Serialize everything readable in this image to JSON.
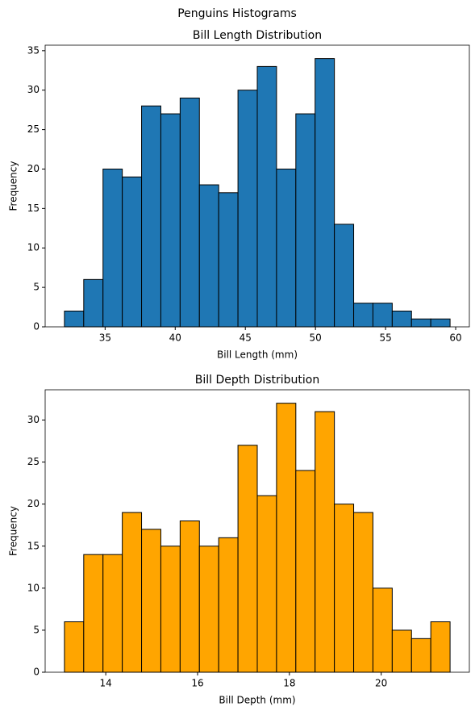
{
  "title": "Penguins Histograms",
  "chart_data": [
    {
      "type": "histogram",
      "title": "Bill Length Distribution",
      "x_label": "Bill Length (mm)",
      "y_label": "Frequency",
      "color": "#1f77b4",
      "bins": [
        32.1,
        33.475,
        34.85,
        36.225,
        37.6,
        38.975,
        40.35,
        41.725,
        43.1,
        44.475,
        45.85,
        47.225,
        48.6,
        49.975,
        51.35,
        52.725,
        54.1,
        55.475,
        56.85,
        58.225,
        59.6
      ],
      "values": [
        2,
        6,
        20,
        19,
        28,
        27,
        29,
        18,
        17,
        30,
        33,
        20,
        27,
        34,
        13,
        3,
        3,
        2,
        1,
        1
      ],
      "xlim": [
        30.725,
        60.975
      ],
      "ylim": [
        0,
        35.7
      ],
      "xticks": [
        35,
        40,
        45,
        50,
        55,
        60
      ],
      "yticks": [
        0,
        5,
        10,
        15,
        20,
        25,
        30,
        35
      ]
    },
    {
      "type": "histogram",
      "title": "Bill Depth Distribution",
      "x_label": "Bill Depth (mm)",
      "y_label": "Frequency",
      "color": "#ffa500",
      "bins": [
        13.1,
        13.52,
        13.94,
        14.36,
        14.78,
        15.2,
        15.62,
        16.04,
        16.46,
        16.88,
        17.3,
        17.72,
        18.14,
        18.56,
        18.98,
        19.4,
        19.82,
        20.24,
        20.66,
        21.08,
        21.5
      ],
      "values": [
        6,
        14,
        14,
        19,
        17,
        15,
        18,
        15,
        16,
        27,
        21,
        32,
        24,
        31,
        20,
        19,
        10,
        5,
        4,
        6
      ],
      "xlim": [
        12.68,
        21.92
      ],
      "ylim": [
        0,
        33.6
      ],
      "xticks": [
        14,
        16,
        18,
        20
      ],
      "yticks": [
        0,
        5,
        10,
        15,
        20,
        25,
        30
      ]
    }
  ]
}
